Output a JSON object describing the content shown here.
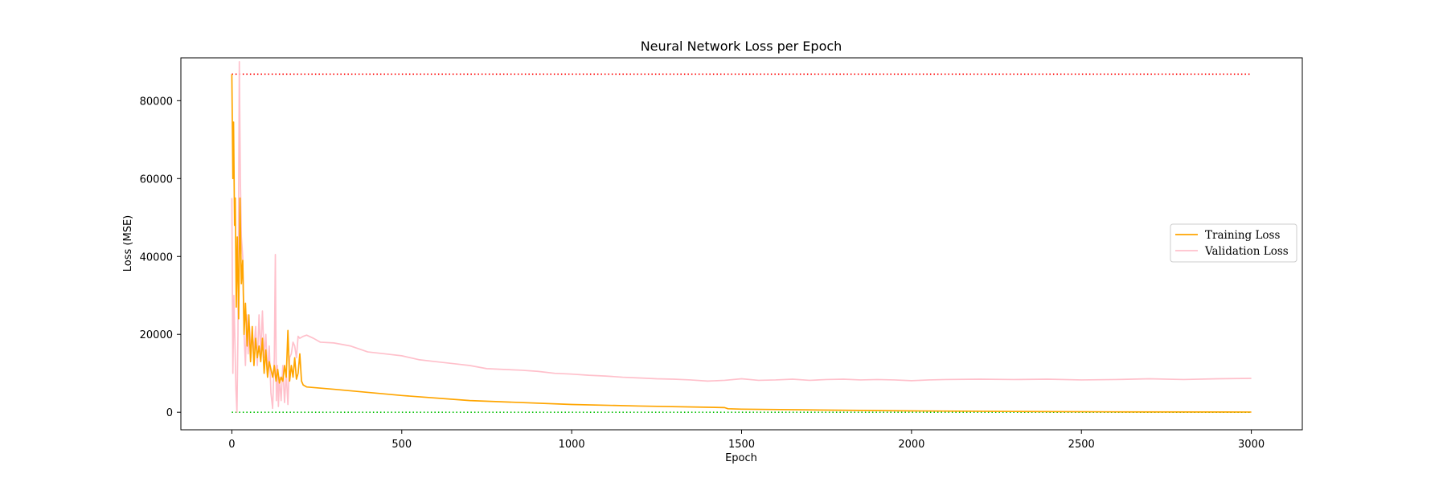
{
  "chart_data": {
    "type": "line",
    "title": "Neural Network Loss per Epoch",
    "xlabel": "Epoch",
    "ylabel": "Loss (MSE)",
    "xlim": [
      -150,
      3150
    ],
    "ylim": [
      -4500,
      91000
    ],
    "xticks": [
      0,
      500,
      1000,
      1500,
      2000,
      2500,
      3000
    ],
    "yticks": [
      0,
      20000,
      40000,
      60000,
      80000
    ],
    "grid": false,
    "legend_position": "center-right",
    "reference_lines": [
      {
        "y": 86800,
        "style": "dotted",
        "color": "#ff0000"
      },
      {
        "y": 0,
        "style": "dotted",
        "color": "#00c000"
      }
    ],
    "series": [
      {
        "name": "Training Loss",
        "color": "#ffa500",
        "x": [
          0,
          3,
          5,
          8,
          10,
          13,
          16,
          20,
          24,
          28,
          32,
          36,
          40,
          45,
          50,
          55,
          60,
          65,
          70,
          75,
          80,
          85,
          90,
          95,
          100,
          105,
          110,
          115,
          120,
          125,
          130,
          135,
          140,
          145,
          150,
          155,
          160,
          165,
          170,
          175,
          180,
          185,
          190,
          195,
          200,
          205,
          210,
          220,
          300,
          500,
          700,
          1000,
          1200,
          1450,
          1460,
          1500,
          1700,
          2000,
          2300,
          2600,
          3000
        ],
        "y": [
          86800,
          60000,
          74500,
          48000,
          55000,
          27000,
          45000,
          24000,
          55000,
          33000,
          39000,
          20000,
          28000,
          17000,
          25000,
          13000,
          22000,
          12000,
          19000,
          14000,
          17000,
          13000,
          19000,
          10000,
          16000,
          9000,
          13000,
          11000,
          9000,
          12000,
          8000,
          11000,
          7500,
          9000,
          8000,
          12000,
          9000,
          21000,
          8000,
          12000,
          9000,
          14000,
          8500,
          10000,
          15000,
          8000,
          7000,
          6500,
          5900,
          4300,
          3000,
          2000,
          1600,
          1200,
          900,
          800,
          600,
          350,
          200,
          100,
          50
        ]
      },
      {
        "name": "Validation Loss",
        "color": "#ffc0cb",
        "x": [
          0,
          3,
          6,
          9,
          12,
          15,
          18,
          22,
          25,
          28,
          32,
          36,
          40,
          44,
          48,
          52,
          56,
          60,
          65,
          70,
          75,
          80,
          85,
          90,
          95,
          100,
          105,
          110,
          115,
          120,
          125,
          128,
          131,
          134,
          137,
          140,
          145,
          150,
          155,
          160,
          165,
          170,
          175,
          180,
          185,
          190,
          195,
          200,
          210,
          220,
          240,
          260,
          300,
          350,
          400,
          450,
          500,
          550,
          600,
          650,
          700,
          750,
          800,
          850,
          900,
          950,
          1000,
          1050,
          1100,
          1150,
          1200,
          1250,
          1300,
          1350,
          1400,
          1450,
          1500,
          1550,
          1600,
          1650,
          1700,
          1750,
          1800,
          1850,
          1900,
          1950,
          2000,
          2050,
          2100,
          2200,
          2300,
          2400,
          2500,
          2600,
          2700,
          2800,
          2900,
          3000
        ],
        "y": [
          55000,
          10000,
          30000,
          18000,
          6000,
          0,
          20000,
          90000,
          60000,
          45000,
          40000,
          20000,
          12000,
          25000,
          15000,
          22000,
          14000,
          20000,
          16000,
          22000,
          12000,
          25000,
          15000,
          26000,
          14000,
          20000,
          10000,
          17000,
          5000,
          1000,
          14000,
          40500,
          3000,
          12000,
          1500,
          9000,
          3000,
          12000,
          2500,
          10000,
          2000,
          14000,
          15000,
          18000,
          17000,
          14000,
          19500,
          19000,
          19500,
          19800,
          19000,
          18000,
          17800,
          17000,
          15500,
          15000,
          14500,
          13500,
          13000,
          12500,
          12000,
          11200,
          11000,
          10800,
          10500,
          10000,
          9800,
          9500,
          9300,
          9000,
          8800,
          8600,
          8500,
          8300,
          8000,
          8200,
          8600,
          8200,
          8300,
          8500,
          8200,
          8400,
          8500,
          8300,
          8400,
          8300,
          8100,
          8300,
          8400,
          8500,
          8400,
          8500,
          8300,
          8400,
          8600,
          8400,
          8600,
          8700
        ]
      }
    ]
  }
}
